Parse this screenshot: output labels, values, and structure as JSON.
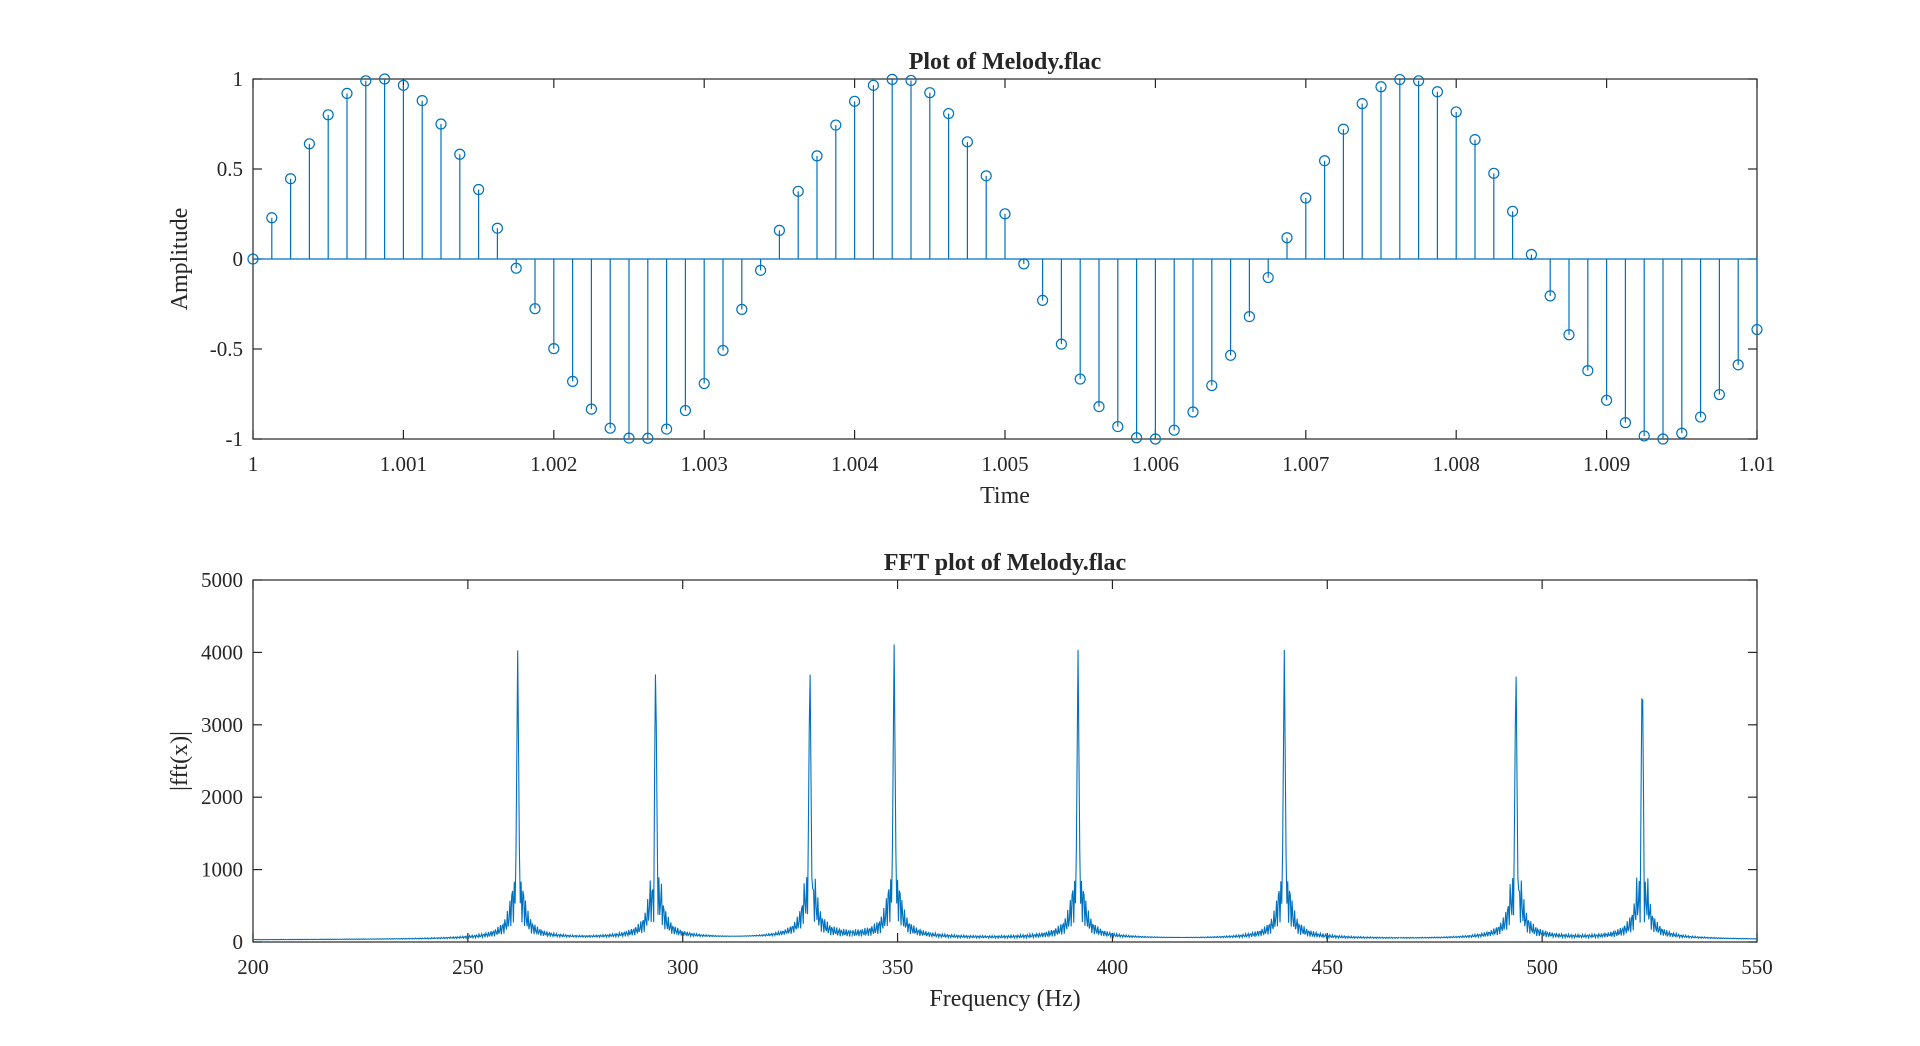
{
  "chart_data": [
    {
      "type": "stem",
      "title": "Plot of Melody.flac",
      "xlabel": "Time",
      "ylabel": "Amplitude",
      "xlim": [
        1,
        1.01
      ],
      "ylim": [
        -1,
        1
      ],
      "xticks": [
        1,
        1.001,
        1.002,
        1.003,
        1.004,
        1.005,
        1.006,
        1.007,
        1.008,
        1.009,
        1.01
      ],
      "xtick_labels": [
        "1",
        "1.001",
        "1.002",
        "1.003",
        "1.004",
        "1.005",
        "1.006",
        "1.007",
        "1.008",
        "1.009",
        "1.01"
      ],
      "yticks": [
        -1,
        -0.5,
        0,
        0.5,
        1
      ],
      "ytick_labels": [
        "-1",
        "-0.5",
        "0",
        "0.5",
        "1"
      ],
      "color": "#0072BD",
      "series": [
        {
          "x_start": 1,
          "x_step": 0.000125,
          "values": [
            0.0,
            0.229,
            0.446,
            0.64,
            0.801,
            0.92,
            0.99,
            1.0,
            0.965,
            0.88,
            0.75,
            0.582,
            0.386,
            0.171,
            -0.051,
            -0.276,
            -0.498,
            -0.68,
            -0.834,
            -0.94,
            -0.995,
            -0.996,
            -0.945,
            -0.842,
            -0.692,
            -0.508,
            -0.28,
            -0.063,
            0.159,
            0.376,
            0.573,
            0.744,
            0.876,
            0.965,
            0.998,
            0.992,
            0.924,
            0.808,
            0.651,
            0.462,
            0.251,
            -0.027,
            -0.23,
            -0.473,
            -0.667,
            -0.82,
            -0.931,
            -0.993,
            -1.0,
            -0.951,
            -0.85,
            -0.703,
            -0.535,
            -0.32,
            -0.103,
            0.118,
            0.339,
            0.546,
            0.721,
            0.863,
            0.957,
            0.997,
            0.99,
            0.929,
            0.817,
            0.663,
            0.476,
            0.265,
            0.025,
            -0.205,
            -0.421,
            -0.62,
            -0.785,
            -0.909,
            -0.983,
            -1.0,
            -0.968,
            -0.878,
            -0.753,
            -0.588,
            -0.392
          ]
        }
      ]
    },
    {
      "type": "line",
      "title": "FFT plot of Melody.flac",
      "xlabel": "Frequency (Hz)",
      "ylabel": "|fft(x)|",
      "xlim": [
        200,
        550
      ],
      "ylim": [
        0,
        5000
      ],
      "xticks": [
        200,
        250,
        300,
        350,
        400,
        450,
        500,
        550
      ],
      "xtick_labels": [
        "200",
        "250",
        "300",
        "350",
        "400",
        "450",
        "500",
        "550"
      ],
      "yticks": [
        0,
        1000,
        2000,
        3000,
        4000,
        5000
      ],
      "ytick_labels": [
        "0",
        "1000",
        "2000",
        "3000",
        "4000",
        "5000"
      ],
      "color": "#0072BD",
      "series": [
        {
          "peaks": [
            {
              "frequency": 261.6,
              "magnitude": 3980
            },
            {
              "frequency": 293.7,
              "magnitude": 3990
            },
            {
              "frequency": 329.6,
              "magnitude": 3970
            },
            {
              "frequency": 349.2,
              "magnitude": 4060
            },
            {
              "frequency": 392.0,
              "magnitude": 3990
            },
            {
              "frequency": 440.0,
              "magnitude": 3990
            },
            {
              "frequency": 493.9,
              "magnitude": 3960
            },
            {
              "frequency": 523.3,
              "magnitude": 4010
            }
          ],
          "sidelobe_magnitude": 850,
          "sidelobe_offset_hz": 1.3,
          "baseline_magnitude": 20,
          "x_resolution_hz": 0.2
        }
      ]
    }
  ]
}
